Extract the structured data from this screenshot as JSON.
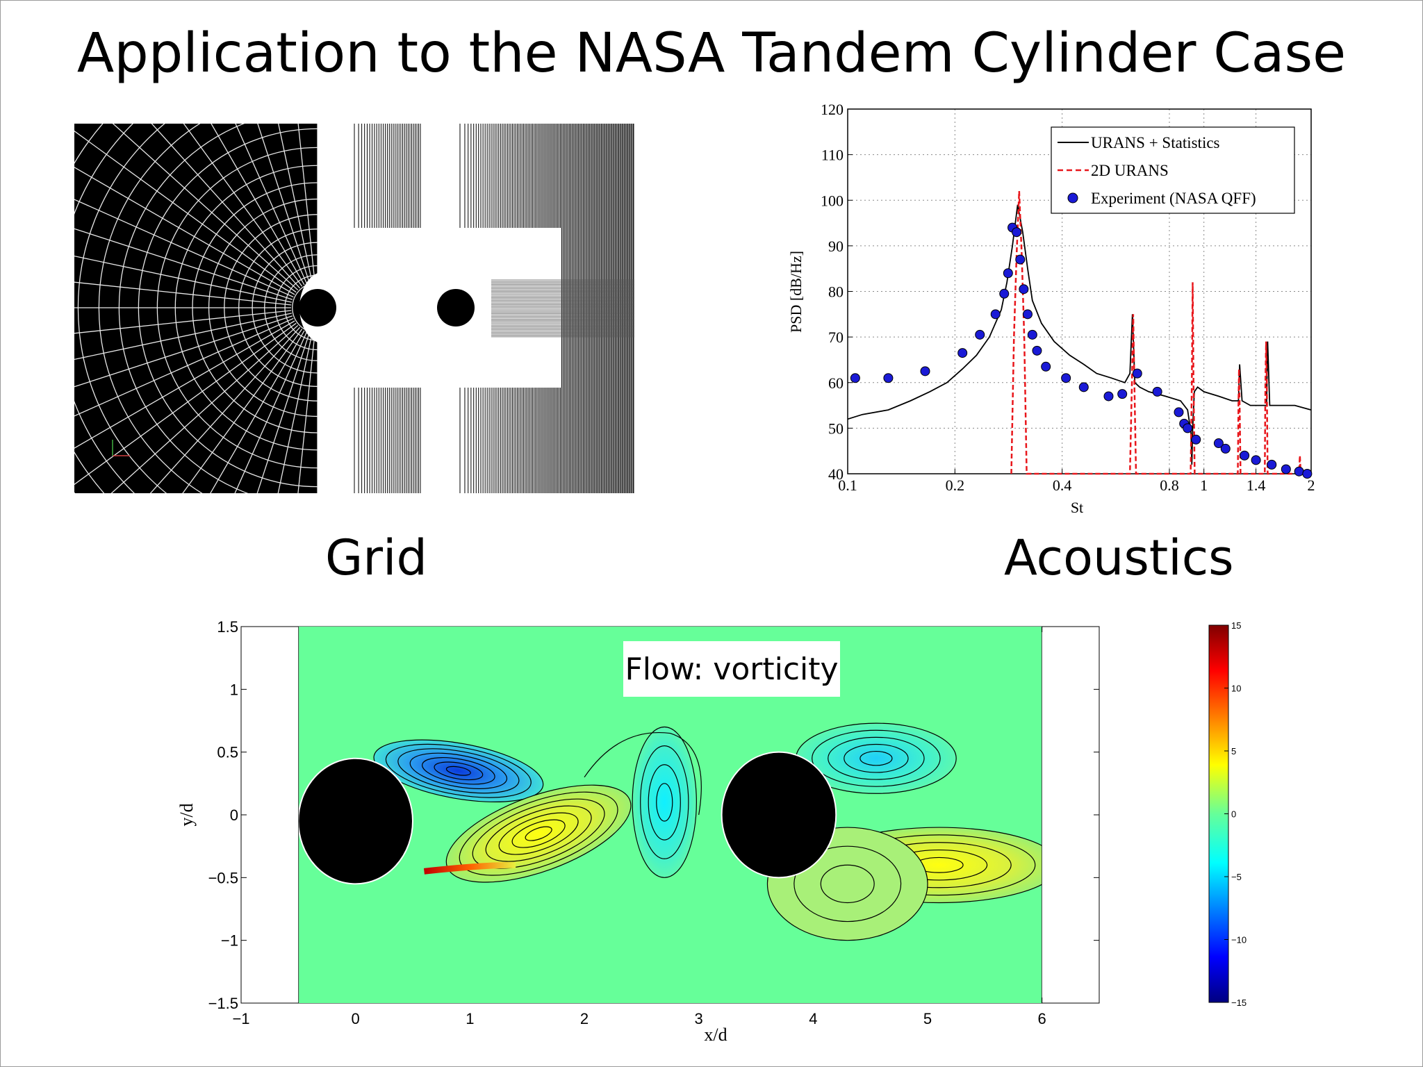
{
  "slide": {
    "title": "Application to the NASA Tandem Cylinder Case",
    "grid_caption": "Grid",
    "acoustics_caption": "Acoustics"
  },
  "colors": {
    "urans_stats": "#000000",
    "urans_2d": "#e8161b",
    "experiment": "#1a1ad6",
    "flow_background": "#66ff99"
  },
  "chart_data": [
    {
      "type": "line",
      "name": "acoustics",
      "xlabel": "St",
      "ylabel": "PSD [dB/Hz]",
      "x_scale": "log",
      "xlim": [
        0.1,
        2
      ],
      "ylim": [
        40,
        120
      ],
      "x_ticks": [
        0.1,
        0.2,
        0.4,
        0.8,
        1,
        1.4,
        2
      ],
      "x_tick_labels": [
        "0.1",
        "0.2",
        "0.4",
        "0.8",
        "1",
        "1.4",
        "2"
      ],
      "y_ticks": [
        40,
        50,
        60,
        70,
        80,
        90,
        100,
        110,
        120
      ],
      "y_tick_labels": [
        "40",
        "50",
        "60",
        "70",
        "80",
        "90",
        "100",
        "110",
        "120"
      ],
      "grid": true,
      "legend_position": "top-right",
      "series": [
        {
          "name": "URANS + Statistics",
          "style": "solid",
          "x": [
            0.1,
            0.11,
            0.13,
            0.15,
            0.17,
            0.19,
            0.21,
            0.23,
            0.25,
            0.27,
            0.28,
            0.29,
            0.3,
            0.31,
            0.32,
            0.33,
            0.35,
            0.38,
            0.42,
            0.46,
            0.5,
            0.55,
            0.6,
            0.62,
            0.63,
            0.64,
            0.66,
            0.7,
            0.78,
            0.86,
            0.9,
            0.92,
            0.925,
            0.93,
            0.94,
            0.96,
            1.0,
            1.1,
            1.2,
            1.25,
            1.26,
            1.28,
            1.35,
            1.45,
            1.5,
            1.51,
            1.53,
            1.6,
            1.8,
            2.0
          ],
          "y": [
            52,
            53,
            54,
            56,
            58,
            60,
            63,
            66,
            70,
            76,
            82,
            90,
            99,
            93,
            85,
            78,
            73,
            69,
            66,
            64,
            62,
            61,
            60,
            62,
            75,
            60,
            59,
            58,
            57,
            56,
            54,
            49,
            42,
            50,
            58,
            59,
            58,
            57,
            56,
            56,
            64,
            56,
            55,
            55,
            55,
            69,
            55,
            55,
            55,
            54
          ]
        },
        {
          "name": "2D URANS",
          "style": "dashed",
          "x": [
            0.288,
            0.293,
            0.298,
            0.303,
            0.308,
            0.313,
            0.318,
            0.62,
            0.628,
            0.633,
            0.638,
            0.645,
            0.918,
            0.925,
            0.93,
            0.935,
            0.942,
            1.245,
            1.25,
            1.255,
            1.26,
            1.267,
            1.482,
            1.488,
            1.495,
            1.502,
            1.51,
            1.85,
            1.86,
            1.87
          ],
          "y": [
            40,
            70,
            88,
            102,
            88,
            70,
            40,
            40,
            60,
            75,
            60,
            40,
            40,
            60,
            82,
            60,
            40,
            40,
            55,
            63,
            55,
            40,
            40,
            60,
            69,
            60,
            40,
            40,
            44,
            40
          ]
        },
        {
          "name": "Experiment (NASA QFF)",
          "style": "markers",
          "x": [
            0.105,
            0.13,
            0.165,
            0.21,
            0.235,
            0.26,
            0.275,
            0.282,
            0.29,
            0.298,
            0.305,
            0.312,
            0.32,
            0.33,
            0.34,
            0.36,
            0.41,
            0.46,
            0.54,
            0.59,
            0.65,
            0.74,
            0.85,
            0.88,
            0.9,
            0.95,
            1.1,
            1.15,
            1.3,
            1.4,
            1.55,
            1.7,
            1.85,
            1.95
          ],
          "y": [
            61,
            61,
            62.5,
            66.5,
            70.5,
            75,
            79.5,
            84,
            94,
            93,
            87,
            80.5,
            75,
            70.5,
            67,
            63.5,
            61,
            59,
            57,
            57.5,
            62,
            58,
            53.5,
            51,
            50,
            47.5,
            46.7,
            45.5,
            44,
            43,
            42,
            41,
            40.5,
            40
          ]
        }
      ]
    },
    {
      "type": "heatmap",
      "name": "flow-vorticity",
      "annotation": "Flow: vorticity",
      "xlabel": "x/d",
      "ylabel": "y/d",
      "xlim": [
        -1,
        6.5
      ],
      "ylim": [
        -1.5,
        1.5
      ],
      "x_ticks": [
        -1,
        0,
        1,
        2,
        3,
        4,
        5,
        6
      ],
      "x_tick_labels": [
        "−1",
        "0",
        "1",
        "2",
        "3",
        "4",
        "5",
        "6"
      ],
      "y_ticks": [
        -1.5,
        -1,
        -0.5,
        0,
        0.5,
        1,
        1.5
      ],
      "y_tick_labels": [
        "−1.5",
        "−1",
        "−0.5",
        "0",
        "0.5",
        "1",
        "1.5"
      ],
      "domain_x": [
        -0.5,
        6
      ],
      "cylinders": [
        {
          "x": 0,
          "y": -0.05,
          "r": 0.5
        },
        {
          "x": 3.7,
          "y": 0,
          "r": 0.5
        }
      ],
      "colorbar": {
        "range": [
          -15,
          15
        ],
        "ticks": [
          15,
          10,
          5,
          0,
          -5,
          -10,
          -15
        ],
        "tick_labels": [
          "15",
          "10",
          "5",
          "0",
          "−5",
          "−10",
          "−15"
        ]
      }
    }
  ]
}
